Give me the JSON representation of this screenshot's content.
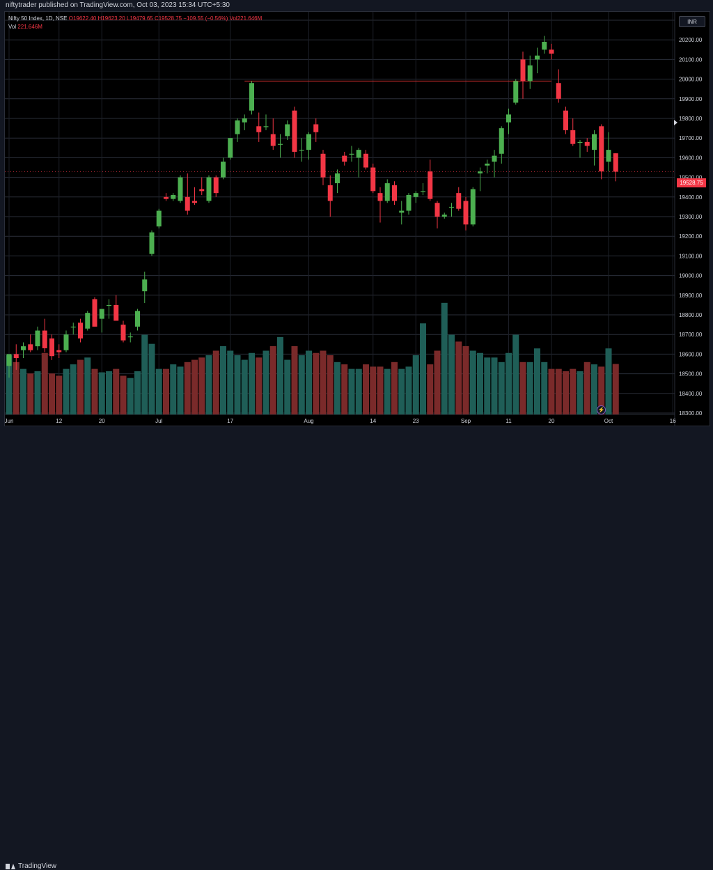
{
  "header": {
    "publisher_line": "niftytrader published on TradingView.com, Oct 03, 2023 15:34 UTC+5:30"
  },
  "legend": {
    "symbol": "Nifty 50 Index, 1D, NSE",
    "ohlc": "O19622.40  H19623.20  L19479.65  C19528.75  −109.55 (−0.56%)  Vol221.646M",
    "vol_label": "Vol",
    "vol_value": "221.646M"
  },
  "currency_button": "INR",
  "last_price_label": "19528.75",
  "footer": {
    "brand": "TradingView"
  },
  "colors": {
    "up": "#4caf50",
    "down": "#f23645",
    "vol_up": "#1f5e57",
    "vol_down": "#7a2a2a",
    "resistance": "#d32f2f",
    "grid": "#2a2e39"
  },
  "chart_data": {
    "type": "candlestick",
    "symbol": "Nifty 50 Index",
    "interval": "1D",
    "exchange": "NSE",
    "ylim": [
      18300,
      20400
    ],
    "yticks": [
      18300,
      18400,
      18500,
      18600,
      18700,
      18800,
      18900,
      19000,
      19100,
      19200,
      19300,
      19400,
      19500,
      19600,
      19700,
      19800,
      19900,
      20000,
      20100,
      20200,
      20300
    ],
    "xtick_labels": [
      {
        "label": "Jun",
        "bar": 0
      },
      {
        "label": "12",
        "bar": 7
      },
      {
        "label": "20",
        "bar": 13
      },
      {
        "label": "Jul",
        "bar": 21
      },
      {
        "label": "17",
        "bar": 31
      },
      {
        "label": "Aug",
        "bar": 42
      },
      {
        "label": "14",
        "bar": 51
      },
      {
        "label": "23",
        "bar": 57
      },
      {
        "label": "Sep",
        "bar": 64
      },
      {
        "label": "11",
        "bar": 70
      },
      {
        "label": "20",
        "bar": 76
      },
      {
        "label": "Oct",
        "bar": 84
      },
      {
        "label": "16",
        "bar": 93
      }
    ],
    "resistance_level": 19990,
    "last_close": 19528.75,
    "candles": [
      {
        "o": 18540,
        "h": 18580,
        "l": 18480,
        "c": 18600
      },
      {
        "o": 18600,
        "h": 18650,
        "l": 18520,
        "c": 18580
      },
      {
        "o": 18620,
        "h": 18660,
        "l": 18580,
        "c": 18640
      },
      {
        "o": 18650,
        "h": 18700,
        "l": 18610,
        "c": 18620
      },
      {
        "o": 18640,
        "h": 18740,
        "l": 18620,
        "c": 18720
      },
      {
        "o": 18720,
        "h": 18780,
        "l": 18610,
        "c": 18630
      },
      {
        "o": 18680,
        "h": 18700,
        "l": 18570,
        "c": 18590
      },
      {
        "o": 18620,
        "h": 18650,
        "l": 18580,
        "c": 18610
      },
      {
        "o": 18620,
        "h": 18720,
        "l": 18610,
        "c": 18700
      },
      {
        "o": 18740,
        "h": 18760,
        "l": 18700,
        "c": 18740
      },
      {
        "o": 18760,
        "h": 18780,
        "l": 18660,
        "c": 18680
      },
      {
        "o": 18730,
        "h": 18820,
        "l": 18720,
        "c": 18810
      },
      {
        "o": 18880,
        "h": 18890,
        "l": 18740,
        "c": 18740
      },
      {
        "o": 18780,
        "h": 18820,
        "l": 18710,
        "c": 18830
      },
      {
        "o": 18850,
        "h": 18880,
        "l": 18780,
        "c": 18850
      },
      {
        "o": 18850,
        "h": 18900,
        "l": 18770,
        "c": 18770
      },
      {
        "o": 18750,
        "h": 18770,
        "l": 18660,
        "c": 18670
      },
      {
        "o": 18690,
        "h": 18710,
        "l": 18660,
        "c": 18690
      },
      {
        "o": 18740,
        "h": 18830,
        "l": 18720,
        "c": 18820
      },
      {
        "o": 18920,
        "h": 19020,
        "l": 18860,
        "c": 18980
      },
      {
        "o": 19110,
        "h": 19230,
        "l": 19100,
        "c": 19220
      },
      {
        "o": 19250,
        "h": 19340,
        "l": 19240,
        "c": 19330
      },
      {
        "o": 19400,
        "h": 19420,
        "l": 19380,
        "c": 19390
      },
      {
        "o": 19390,
        "h": 19420,
        "l": 19380,
        "c": 19410
      },
      {
        "o": 19380,
        "h": 19510,
        "l": 19370,
        "c": 19500
      },
      {
        "o": 19400,
        "h": 19520,
        "l": 19310,
        "c": 19330
      },
      {
        "o": 19380,
        "h": 19450,
        "l": 19360,
        "c": 19370
      },
      {
        "o": 19440,
        "h": 19500,
        "l": 19410,
        "c": 19430
      },
      {
        "o": 19380,
        "h": 19510,
        "l": 19370,
        "c": 19500
      },
      {
        "o": 19500,
        "h": 19510,
        "l": 19400,
        "c": 19420
      },
      {
        "o": 19500,
        "h": 19600,
        "l": 19490,
        "c": 19580
      },
      {
        "o": 19600,
        "h": 19700,
        "l": 19590,
        "c": 19700
      },
      {
        "o": 19720,
        "h": 19800,
        "l": 19680,
        "c": 19790
      },
      {
        "o": 19780,
        "h": 19820,
        "l": 19740,
        "c": 19800
      },
      {
        "o": 19840,
        "h": 19990,
        "l": 19820,
        "c": 19980
      },
      {
        "o": 19760,
        "h": 19830,
        "l": 19680,
        "c": 19730
      },
      {
        "o": 19760,
        "h": 19820,
        "l": 19740,
        "c": 19760
      },
      {
        "o": 19720,
        "h": 19800,
        "l": 19640,
        "c": 19660
      },
      {
        "o": 19670,
        "h": 19720,
        "l": 19600,
        "c": 19670
      },
      {
        "o": 19710,
        "h": 19790,
        "l": 19690,
        "c": 19770
      },
      {
        "o": 19840,
        "h": 19860,
        "l": 19600,
        "c": 19630
      },
      {
        "o": 19640,
        "h": 19700,
        "l": 19580,
        "c": 19640
      },
      {
        "o": 19640,
        "h": 19730,
        "l": 19590,
        "c": 19720
      },
      {
        "o": 19770,
        "h": 19800,
        "l": 19680,
        "c": 19730
      },
      {
        "o": 19620,
        "h": 19640,
        "l": 19460,
        "c": 19500
      },
      {
        "o": 19460,
        "h": 19510,
        "l": 19300,
        "c": 19380
      },
      {
        "o": 19470,
        "h": 19540,
        "l": 19420,
        "c": 19520
      },
      {
        "o": 19610,
        "h": 19630,
        "l": 19560,
        "c": 19580
      },
      {
        "o": 19620,
        "h": 19660,
        "l": 19580,
        "c": 19620
      },
      {
        "o": 19600,
        "h": 19650,
        "l": 19500,
        "c": 19640
      },
      {
        "o": 19620,
        "h": 19640,
        "l": 19540,
        "c": 19550
      },
      {
        "o": 19550,
        "h": 19570,
        "l": 19420,
        "c": 19430
      },
      {
        "o": 19420,
        "h": 19450,
        "l": 19270,
        "c": 19380
      },
      {
        "o": 19380,
        "h": 19490,
        "l": 19370,
        "c": 19470
      },
      {
        "o": 19460,
        "h": 19480,
        "l": 19360,
        "c": 19380
      },
      {
        "o": 19320,
        "h": 19380,
        "l": 19260,
        "c": 19330
      },
      {
        "o": 19330,
        "h": 19420,
        "l": 19310,
        "c": 19410
      },
      {
        "o": 19400,
        "h": 19430,
        "l": 19370,
        "c": 19420
      },
      {
        "o": 19430,
        "h": 19470,
        "l": 19410,
        "c": 19430
      },
      {
        "o": 19530,
        "h": 19590,
        "l": 19380,
        "c": 19390
      },
      {
        "o": 19370,
        "h": 19380,
        "l": 19240,
        "c": 19300
      },
      {
        "o": 19300,
        "h": 19320,
        "l": 19290,
        "c": 19310
      },
      {
        "o": 19350,
        "h": 19370,
        "l": 19300,
        "c": 19350
      },
      {
        "o": 19420,
        "h": 19450,
        "l": 19330,
        "c": 19340
      },
      {
        "o": 19380,
        "h": 19400,
        "l": 19230,
        "c": 19260
      },
      {
        "o": 19260,
        "h": 19450,
        "l": 19250,
        "c": 19440
      },
      {
        "o": 19520,
        "h": 19550,
        "l": 19430,
        "c": 19530
      },
      {
        "o": 19560,
        "h": 19590,
        "l": 19520,
        "c": 19570
      },
      {
        "o": 19580,
        "h": 19640,
        "l": 19500,
        "c": 19610
      },
      {
        "o": 19620,
        "h": 19760,
        "l": 19570,
        "c": 19750
      },
      {
        "o": 19780,
        "h": 19850,
        "l": 19720,
        "c": 19820
      },
      {
        "o": 19880,
        "h": 20000,
        "l": 19870,
        "c": 19990
      },
      {
        "o": 20100,
        "h": 20140,
        "l": 19900,
        "c": 19990
      },
      {
        "o": 19990,
        "h": 20120,
        "l": 19950,
        "c": 20070
      },
      {
        "o": 20100,
        "h": 20160,
        "l": 20030,
        "c": 20120
      },
      {
        "o": 20150,
        "h": 20220,
        "l": 20130,
        "c": 20190
      },
      {
        "o": 20150,
        "h": 20180,
        "l": 20100,
        "c": 20130
      },
      {
        "o": 19980,
        "h": 20050,
        "l": 19880,
        "c": 19900
      },
      {
        "o": 19840,
        "h": 19860,
        "l": 19720,
        "c": 19740
      },
      {
        "o": 19740,
        "h": 19800,
        "l": 19660,
        "c": 19670
      },
      {
        "o": 19680,
        "h": 19690,
        "l": 19600,
        "c": 19680
      },
      {
        "o": 19680,
        "h": 19700,
        "l": 19630,
        "c": 19660
      },
      {
        "o": 19640,
        "h": 19740,
        "l": 19560,
        "c": 19720
      },
      {
        "o": 19760,
        "h": 19770,
        "l": 19490,
        "c": 19530
      },
      {
        "o": 19580,
        "h": 19730,
        "l": 19530,
        "c": 19640
      },
      {
        "o": 19622.4,
        "h": 19623.2,
        "l": 19479.65,
        "c": 19528.75
      }
    ],
    "volume": [
      260,
      230,
      200,
      180,
      190,
      270,
      180,
      170,
      200,
      220,
      240,
      250,
      200,
      185,
      190,
      200,
      170,
      160,
      190,
      350,
      310,
      200,
      200,
      220,
      210,
      230,
      240,
      250,
      260,
      280,
      300,
      280,
      260,
      240,
      270,
      250,
      280,
      300,
      340,
      240,
      300,
      260,
      280,
      270,
      280,
      260,
      230,
      220,
      200,
      200,
      220,
      210,
      210,
      200,
      230,
      200,
      210,
      260,
      400,
      220,
      280,
      490,
      350,
      320,
      300,
      280,
      270,
      250,
      250,
      230,
      270,
      350,
      230,
      230,
      290,
      230,
      200,
      200,
      190,
      200,
      190,
      230,
      220,
      210,
      290,
      221.646
    ],
    "volume_ylim": [
      0,
      520
    ],
    "volume_unit": "M"
  }
}
